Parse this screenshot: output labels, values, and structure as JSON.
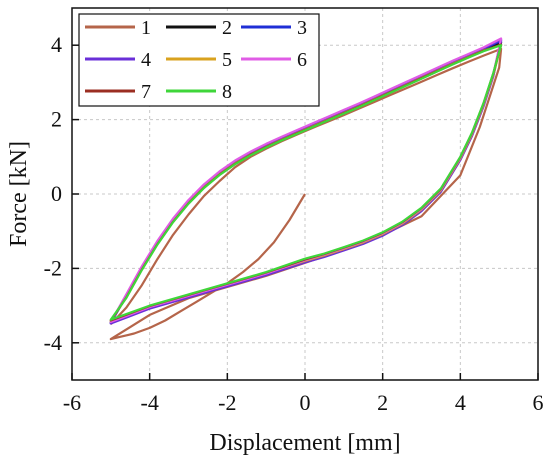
{
  "chart_data": {
    "type": "line",
    "xlabel": "Displacement [mm]",
    "ylabel": "Force [kN]",
    "xlim": [
      -6,
      6
    ],
    "ylim": [
      -5,
      5
    ],
    "xticks": [
      -6,
      -4,
      -2,
      0,
      2,
      4,
      6
    ],
    "yticks": [
      -4,
      -2,
      0,
      2,
      4
    ],
    "grid": true,
    "legend_placement": "top-left",
    "series": [
      {
        "name": "1",
        "color": "#b5654a",
        "x": [
          0,
          -0.4,
          -0.8,
          -1.2,
          -1.6,
          -2.0,
          -2.4,
          -2.8,
          -3.2,
          -3.6,
          -4.0,
          -4.4,
          -4.8,
          -5.0,
          -4.0,
          -3.0,
          -2.0,
          -1.0,
          0.0,
          1.0,
          2.0,
          3.0,
          4.0,
          4.5,
          5.0,
          5.05,
          4.6,
          4.2,
          3.8,
          3.4,
          3.0,
          2.6,
          2.2,
          1.8,
          1.4,
          1.0,
          0.6,
          0.2,
          -0.2,
          -0.6,
          -1.0,
          -1.4,
          -1.8,
          -2.2,
          -2.6,
          -3.0,
          -3.4,
          -3.8,
          -4.2,
          -4.6,
          -5.0
        ],
        "y": [
          0,
          -0.7,
          -1.3,
          -1.75,
          -2.1,
          -2.4,
          -2.65,
          -2.9,
          -3.15,
          -3.4,
          -3.6,
          -3.75,
          -3.85,
          -3.9,
          -3.25,
          -2.8,
          -2.5,
          -2.2,
          -1.85,
          -1.5,
          -1.1,
          -0.6,
          0.5,
          1.8,
          3.4,
          3.9,
          3.72,
          3.55,
          3.38,
          3.2,
          3.02,
          2.84,
          2.66,
          2.48,
          2.3,
          2.12,
          1.95,
          1.78,
          1.6,
          1.42,
          1.22,
          1.0,
          0.72,
          0.35,
          -0.05,
          -0.55,
          -1.1,
          -1.75,
          -2.45,
          -3.05,
          -3.5
        ]
      },
      {
        "name": "2",
        "color": "#111111",
        "x": [
          0,
          0.5,
          1.0,
          1.5,
          2.0,
          2.5,
          3.0,
          3.5,
          4.0,
          4.3,
          4.6,
          4.85,
          5.05,
          4.6,
          4.2,
          3.8,
          3.4,
          3.0,
          2.6,
          2.2,
          1.8,
          1.4,
          1.0,
          0.6,
          0.2,
          -0.2,
          -0.6,
          -1.0,
          -1.4,
          -1.8,
          -2.2,
          -2.6,
          -3.0,
          -3.4,
          -3.8,
          -4.2,
          -4.6,
          -5.0,
          -4.0,
          -3.0,
          -2.0,
          -1.0,
          0.0
        ],
        "y": [
          -1.8,
          -1.65,
          -1.48,
          -1.3,
          -1.08,
          -0.8,
          -0.42,
          0.1,
          0.95,
          1.6,
          2.4,
          3.2,
          4.08,
          3.88,
          3.7,
          3.52,
          3.33,
          3.14,
          2.95,
          2.76,
          2.57,
          2.38,
          2.2,
          2.02,
          1.84,
          1.66,
          1.48,
          1.29,
          1.08,
          0.84,
          0.55,
          0.2,
          -0.22,
          -0.72,
          -1.32,
          -2.0,
          -2.75,
          -3.45,
          -3.05,
          -2.75,
          -2.45,
          -2.15,
          -1.8
        ]
      },
      {
        "name": "3",
        "color": "#1f2fd6",
        "x": [
          0,
          0.5,
          1.0,
          1.5,
          2.0,
          2.5,
          3.0,
          3.5,
          4.0,
          4.3,
          4.6,
          4.85,
          5.05,
          4.6,
          4.2,
          3.8,
          3.4,
          3.0,
          2.6,
          2.2,
          1.8,
          1.4,
          1.0,
          0.6,
          0.2,
          -0.2,
          -0.6,
          -1.0,
          -1.4,
          -1.8,
          -2.2,
          -2.6,
          -3.0,
          -3.4,
          -3.8,
          -4.2,
          -4.6,
          -5.0,
          -4.0,
          -3.0,
          -2.0,
          -1.0,
          0.0
        ],
        "y": [
          -1.82,
          -1.67,
          -1.5,
          -1.32,
          -1.1,
          -0.82,
          -0.44,
          0.08,
          0.93,
          1.58,
          2.38,
          3.18,
          4.12,
          3.9,
          3.72,
          3.54,
          3.35,
          3.16,
          2.97,
          2.78,
          2.59,
          2.4,
          2.22,
          2.04,
          1.86,
          1.68,
          1.5,
          1.31,
          1.1,
          0.86,
          0.57,
          0.22,
          -0.2,
          -0.7,
          -1.3,
          -1.98,
          -2.73,
          -3.47,
          -3.07,
          -2.77,
          -2.47,
          -2.17,
          -1.82
        ]
      },
      {
        "name": "4",
        "color": "#6a2fd8",
        "x": [
          0,
          0.5,
          1.0,
          1.5,
          2.0,
          2.5,
          3.0,
          3.5,
          4.0,
          4.3,
          4.6,
          4.85,
          5.05,
          4.6,
          4.2,
          3.8,
          3.4,
          3.0,
          2.6,
          2.2,
          1.8,
          1.4,
          1.0,
          0.6,
          0.2,
          -0.2,
          -0.6,
          -1.0,
          -1.4,
          -1.8,
          -2.2,
          -2.6,
          -3.0,
          -3.4,
          -3.8,
          -4.2,
          -4.6,
          -5.0,
          -4.0,
          -3.0,
          -2.0,
          -1.0,
          0.0
        ],
        "y": [
          -1.84,
          -1.69,
          -1.52,
          -1.34,
          -1.12,
          -0.84,
          -0.46,
          0.06,
          0.91,
          1.56,
          2.36,
          3.16,
          4.15,
          3.92,
          3.74,
          3.56,
          3.37,
          3.18,
          2.99,
          2.8,
          2.61,
          2.42,
          2.24,
          2.06,
          1.88,
          1.7,
          1.52,
          1.33,
          1.12,
          0.88,
          0.59,
          0.24,
          -0.18,
          -0.68,
          -1.28,
          -1.96,
          -2.71,
          -3.48,
          -3.08,
          -2.78,
          -2.48,
          -2.18,
          -1.84
        ]
      },
      {
        "name": "5",
        "color": "#d9a21e",
        "x": [
          0,
          0.5,
          1.0,
          1.5,
          2.0,
          2.5,
          3.0,
          3.5,
          4.0,
          4.3,
          4.6,
          4.85,
          5.05,
          4.6,
          4.2,
          3.8,
          3.4,
          3.0,
          2.6,
          2.2,
          1.8,
          1.4,
          1.0,
          0.6,
          0.2,
          -0.2,
          -0.6,
          -1.0,
          -1.4,
          -1.8,
          -2.2,
          -2.6,
          -3.0,
          -3.4,
          -3.8,
          -4.2,
          -4.6,
          -5.0,
          -4.0,
          -3.0,
          -2.0,
          -1.0,
          0.0
        ],
        "y": [
          -1.8,
          -1.65,
          -1.48,
          -1.3,
          -1.08,
          -0.8,
          -0.42,
          0.1,
          0.95,
          1.6,
          2.4,
          3.2,
          4.0,
          3.86,
          3.68,
          3.5,
          3.31,
          3.12,
          2.93,
          2.74,
          2.55,
          2.36,
          2.18,
          2.0,
          1.82,
          1.64,
          1.46,
          1.27,
          1.06,
          0.82,
          0.53,
          0.18,
          -0.24,
          -0.74,
          -1.34,
          -2.02,
          -2.77,
          -3.42,
          -3.03,
          -2.73,
          -2.43,
          -2.13,
          -1.8
        ]
      },
      {
        "name": "6",
        "color": "#e05ce6",
        "x": [
          0,
          0.5,
          1.0,
          1.5,
          2.0,
          2.5,
          3.0,
          3.5,
          4.0,
          4.3,
          4.6,
          4.85,
          5.05,
          4.6,
          4.2,
          3.8,
          3.4,
          3.0,
          2.6,
          2.2,
          1.8,
          1.4,
          1.0,
          0.6,
          0.2,
          -0.2,
          -0.6,
          -1.0,
          -1.4,
          -1.8,
          -2.2,
          -2.6,
          -3.0,
          -3.4,
          -3.8,
          -4.2,
          -4.6,
          -5.0,
          -4.0,
          -3.0,
          -2.0,
          -1.0,
          0.0
        ],
        "y": [
          -1.78,
          -1.63,
          -1.46,
          -1.28,
          -1.06,
          -0.78,
          -0.4,
          0.12,
          0.97,
          1.62,
          2.42,
          3.22,
          4.18,
          3.94,
          3.76,
          3.58,
          3.39,
          3.2,
          3.01,
          2.82,
          2.63,
          2.44,
          2.26,
          2.08,
          1.9,
          1.72,
          1.54,
          1.35,
          1.14,
          0.9,
          0.61,
          0.26,
          -0.16,
          -0.66,
          -1.26,
          -1.94,
          -2.69,
          -3.44,
          -3.04,
          -2.74,
          -2.44,
          -2.14,
          -1.78
        ]
      },
      {
        "name": "7",
        "color": "#9b2e22",
        "x": [
          0,
          0.5,
          1.0,
          1.5,
          2.0,
          2.5,
          3.0,
          3.5,
          4.0,
          4.3,
          4.6,
          4.85,
          5.05,
          4.6,
          4.2,
          3.8,
          3.4,
          3.0,
          2.6,
          2.2,
          1.8,
          1.4,
          1.0,
          0.6,
          0.2,
          -0.2,
          -0.6,
          -1.0,
          -1.4,
          -1.8,
          -2.2,
          -2.6,
          -3.0,
          -3.4,
          -3.8,
          -4.2,
          -4.6,
          -5.0,
          -4.0,
          -3.0,
          -2.0,
          -1.0,
          0.0
        ],
        "y": [
          -1.76,
          -1.61,
          -1.44,
          -1.26,
          -1.04,
          -0.76,
          -0.38,
          0.14,
          0.99,
          1.64,
          2.44,
          3.24,
          4.02,
          3.85,
          3.67,
          3.49,
          3.3,
          3.11,
          2.92,
          2.73,
          2.54,
          2.35,
          2.17,
          1.99,
          1.81,
          1.63,
          1.45,
          1.26,
          1.05,
          0.81,
          0.52,
          0.17,
          -0.25,
          -0.75,
          -1.35,
          -2.03,
          -2.78,
          -3.4,
          -3.01,
          -2.71,
          -2.41,
          -2.11,
          -1.76
        ]
      },
      {
        "name": "8",
        "color": "#3fd63a",
        "x": [
          0,
          0.5,
          1.0,
          1.5,
          2.0,
          2.5,
          3.0,
          3.5,
          4.0,
          4.3,
          4.6,
          4.85,
          5.05,
          4.6,
          4.2,
          3.8,
          3.4,
          3.0,
          2.6,
          2.2,
          1.8,
          1.4,
          1.0,
          0.6,
          0.2,
          -0.2,
          -0.6,
          -1.0,
          -1.4,
          -1.8,
          -2.2,
          -2.6,
          -3.0,
          -3.4,
          -3.8,
          -4.2,
          -4.6,
          -5.0,
          -4.0,
          -3.0,
          -2.0,
          -1.0,
          0.0
        ],
        "y": [
          -1.74,
          -1.6,
          -1.43,
          -1.25,
          -1.03,
          -0.75,
          -0.37,
          0.15,
          1.0,
          1.65,
          2.45,
          3.25,
          4.0,
          3.84,
          3.66,
          3.48,
          3.29,
          3.1,
          2.91,
          2.72,
          2.53,
          2.34,
          2.16,
          1.98,
          1.8,
          1.62,
          1.44,
          1.25,
          1.04,
          0.8,
          0.51,
          0.16,
          -0.26,
          -0.76,
          -1.36,
          -2.04,
          -2.79,
          -3.38,
          -3.0,
          -2.7,
          -2.4,
          -2.1,
          -1.74
        ]
      }
    ]
  }
}
